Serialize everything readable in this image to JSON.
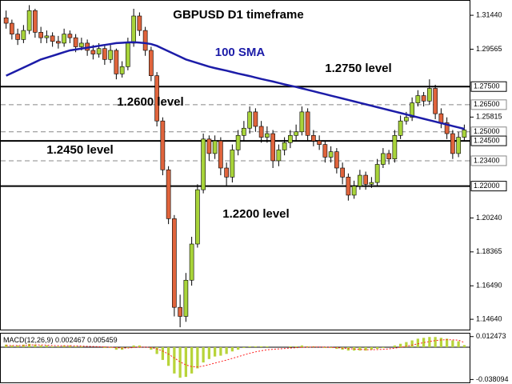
{
  "chart_data": {
    "type": "candlestick",
    "title": "GBPUSD D1 timeframe",
    "up_color": "#a8d43a",
    "down_color": "#e0643c",
    "candles": {
      "open": [
        1.313,
        1.31,
        1.304,
        1.301,
        1.306,
        1.317,
        1.305,
        1.302,
        1.303,
        1.3,
        1.299,
        1.304,
        1.302,
        1.297,
        1.299,
        1.295,
        1.293,
        1.296,
        1.29,
        1.295,
        1.282,
        1.286,
        1.299,
        1.314,
        1.306,
        1.295,
        1.281,
        1.256,
        1.229,
        1.202,
        1.153,
        1.148,
        1.168,
        1.188,
        1.218,
        1.246,
        1.238,
        1.245,
        1.23,
        1.225,
        1.24,
        1.248,
        1.252,
        1.261,
        1.253,
        1.247,
        1.249,
        1.234,
        1.24,
        1.244,
        1.248,
        1.25,
        1.261,
        1.248,
        1.245,
        1.243,
        1.236,
        1.239,
        1.23,
        1.225,
        1.215,
        1.22,
        1.226,
        1.221,
        1.222,
        1.232,
        1.238,
        1.235,
        1.248,
        1.256,
        1.258,
        1.266,
        1.27,
        1.267,
        1.274,
        1.26,
        1.255,
        1.249,
        1.238,
        1.247
      ],
      "high": [
        1.317,
        1.312,
        1.307,
        1.309,
        1.32,
        1.318,
        1.308,
        1.306,
        1.305,
        1.303,
        1.307,
        1.306,
        1.304,
        1.302,
        1.301,
        1.298,
        1.299,
        1.298,
        1.298,
        1.296,
        1.289,
        1.302,
        1.318,
        1.316,
        1.308,
        1.297,
        1.283,
        1.258,
        1.231,
        1.204,
        1.16,
        1.172,
        1.192,
        1.221,
        1.249,
        1.248,
        1.248,
        1.247,
        1.233,
        1.243,
        1.251,
        1.256,
        1.264,
        1.263,
        1.256,
        1.253,
        1.251,
        1.243,
        1.247,
        1.251,
        1.254,
        1.264,
        1.263,
        1.251,
        1.248,
        1.245,
        1.242,
        1.241,
        1.233,
        1.227,
        1.223,
        1.229,
        1.228,
        1.225,
        1.235,
        1.241,
        1.24,
        1.251,
        1.259,
        1.261,
        1.269,
        1.273,
        1.272,
        1.279,
        1.276,
        1.263,
        1.258,
        1.251,
        1.25,
        1.254
      ],
      "low": [
        1.307,
        1.301,
        1.298,
        1.299,
        1.304,
        1.302,
        1.299,
        1.299,
        1.297,
        1.296,
        1.297,
        1.299,
        1.294,
        1.295,
        1.292,
        1.29,
        1.291,
        1.287,
        1.288,
        1.279,
        1.28,
        1.284,
        1.297,
        1.303,
        1.292,
        1.278,
        1.253,
        1.226,
        1.199,
        1.148,
        1.142,
        1.145,
        1.165,
        1.186,
        1.216,
        1.234,
        1.235,
        1.226,
        1.22,
        1.222,
        1.237,
        1.245,
        1.249,
        1.25,
        1.244,
        1.244,
        1.23,
        1.231,
        1.237,
        1.241,
        1.245,
        1.248,
        1.245,
        1.242,
        1.24,
        1.233,
        1.233,
        1.227,
        1.221,
        1.212,
        1.213,
        1.218,
        1.218,
        1.219,
        1.22,
        1.23,
        1.232,
        1.233,
        1.246,
        1.254,
        1.256,
        1.264,
        1.264,
        1.265,
        1.257,
        1.252,
        1.246,
        1.235,
        1.236,
        1.245
      ],
      "close": [
        1.31,
        1.304,
        1.301,
        1.306,
        1.317,
        1.305,
        1.302,
        1.303,
        1.3,
        1.299,
        1.304,
        1.302,
        1.297,
        1.299,
        1.295,
        1.293,
        1.296,
        1.29,
        1.295,
        1.282,
        1.286,
        1.299,
        1.314,
        1.306,
        1.295,
        1.281,
        1.256,
        1.229,
        1.202,
        1.153,
        1.148,
        1.168,
        1.188,
        1.218,
        1.246,
        1.238,
        1.245,
        1.23,
        1.225,
        1.24,
        1.248,
        1.252,
        1.261,
        1.253,
        1.247,
        1.249,
        1.234,
        1.24,
        1.244,
        1.248,
        1.25,
        1.261,
        1.248,
        1.245,
        1.243,
        1.236,
        1.239,
        1.23,
        1.225,
        1.215,
        1.22,
        1.226,
        1.221,
        1.222,
        1.232,
        1.238,
        1.235,
        1.248,
        1.256,
        1.258,
        1.266,
        1.27,
        1.267,
        1.274,
        1.26,
        1.255,
        1.249,
        1.238,
        1.247,
        1.251
      ]
    },
    "sma": {
      "name": "100 SMA",
      "color": "#1c1ca8",
      "values": [
        1.281,
        1.2825,
        1.284,
        1.2855,
        1.287,
        1.2885,
        1.29,
        1.291,
        1.292,
        1.293,
        1.294,
        1.295,
        1.2955,
        1.296,
        1.2965,
        1.297,
        1.2975,
        1.298,
        1.2985,
        1.299,
        1.2992,
        1.2994,
        1.2995,
        1.2993,
        1.299,
        1.2985,
        1.2975,
        1.296,
        1.2945,
        1.293,
        1.2915,
        1.29,
        1.289,
        1.288,
        1.287,
        1.286,
        1.2852,
        1.2845,
        1.2838,
        1.283,
        1.2822,
        1.2815,
        1.2808,
        1.28,
        1.2792,
        1.2785,
        1.2778,
        1.277,
        1.2762,
        1.2755,
        1.2748,
        1.274,
        1.2732,
        1.2724,
        1.2716,
        1.2708,
        1.27,
        1.2692,
        1.2684,
        1.2676,
        1.2668,
        1.266,
        1.2652,
        1.2644,
        1.2636,
        1.2628,
        1.262,
        1.2612,
        1.2604,
        1.2596,
        1.2588,
        1.258,
        1.2572,
        1.2564,
        1.2556,
        1.2548,
        1.254,
        1.2532,
        1.2524,
        1.2516
      ]
    },
    "ylim": [
      1.1407,
      1.3224
    ],
    "yticks": [
      {
        "value": 1.3144,
        "label": "1.31440"
      },
      {
        "value": 1.29565,
        "label": "1.29565"
      },
      {
        "value": 1.25815,
        "label": "1.25815"
      },
      {
        "value": 1.2024,
        "label": "1.20240"
      },
      {
        "value": 1.18365,
        "label": "1.18365"
      },
      {
        "value": 1.1649,
        "label": "1.16490"
      },
      {
        "value": 1.1464,
        "label": "1.14640"
      }
    ],
    "levels": [
      {
        "value": 1.275,
        "label": "1.27500",
        "style": "solid"
      },
      {
        "value": 1.265,
        "label": "1.26500",
        "style": "dashed"
      },
      {
        "value": 1.25,
        "label": "1.25000",
        "style": "dashed"
      },
      {
        "value": 1.245,
        "label": "1.24500",
        "style": "solid"
      },
      {
        "value": 1.234,
        "label": "1.23400",
        "style": "dashed"
      },
      {
        "value": 1.22,
        "label": "1.22000",
        "style": "solid"
      }
    ],
    "annotations": [
      "1.2750 level",
      "1.2600 level",
      "1.2450 level",
      "1.2200 level"
    ],
    "macd": {
      "name": "MACD(12,26,9)",
      "hist_color": "#b8d43a",
      "signal_color": "#ff2020",
      "ylim": [
        -0.0415,
        0.016
      ],
      "yticks": [
        0.012473,
        -0.038094
      ],
      "histogram": [
        0.003,
        0.002,
        0.002,
        0.003,
        0.004,
        0.003,
        0.002,
        0.002,
        0.001,
        0.001,
        0.002,
        0.002,
        0.001,
        0.001,
        0,
        0,
        0,
        -0.001,
        -0.001,
        -0.003,
        -0.003,
        -0.001,
        0.002,
        0.002,
        0,
        -0.003,
        -0.008,
        -0.015,
        -0.022,
        -0.031,
        -0.036,
        -0.035,
        -0.031,
        -0.025,
        -0.018,
        -0.014,
        -0.011,
        -0.01,
        -0.008,
        -0.005,
        -0.003,
        -0.001,
        0.001,
        0.001,
        0.001,
        0.001,
        0,
        0,
        0,
        0.001,
        0.001,
        0.002,
        0.001,
        0.001,
        0,
        -0.001,
        -0.001,
        -0.002,
        -0.003,
        -0.004,
        -0.004,
        -0.004,
        -0.004,
        -0.003,
        -0.002,
        -0.001,
        0,
        0.002,
        0.004,
        0.006,
        0.008,
        0.01,
        0.011,
        0.012,
        0.012,
        0.011,
        0.01,
        0.008,
        0.007,
        0.002467
      ],
      "signal": [
        0.002,
        0.002,
        0.002,
        0.002,
        0.0025,
        0.0027,
        0.0026,
        0.0024,
        0.002,
        0.0018,
        0.0018,
        0.0018,
        0.0016,
        0.0014,
        0.001,
        0.0008,
        0.0006,
        0.0003,
        0,
        -0.0006,
        -0.001,
        -0.001,
        -0.0004,
        0.0001,
        0.0001,
        -0.0005,
        -0.002,
        -0.0046,
        -0.0081,
        -0.0127,
        -0.0173,
        -0.0209,
        -0.0229,
        -0.0233,
        -0.0222,
        -0.0206,
        -0.0187,
        -0.0169,
        -0.0152,
        -0.0132,
        -0.0112,
        -0.0092,
        -0.0072,
        -0.0055,
        -0.0042,
        -0.0031,
        -0.0025,
        -0.002,
        -0.0016,
        -0.0011,
        -0.0007,
        -0.0002,
        0,
        0.0002,
        0.0002,
        0,
        -0.0002,
        -0.0006,
        -0.0011,
        -0.0017,
        -0.0022,
        -0.0026,
        -0.0029,
        -0.003,
        -0.0028,
        -0.0025,
        -0.002,
        -0.0012,
        -0.0002,
        0.0011,
        0.0025,
        0.004,
        0.0054,
        0.0067,
        0.0078,
        0.0085,
        0.0088,
        0.0086,
        0.0083,
        0.005459
      ]
    }
  }
}
